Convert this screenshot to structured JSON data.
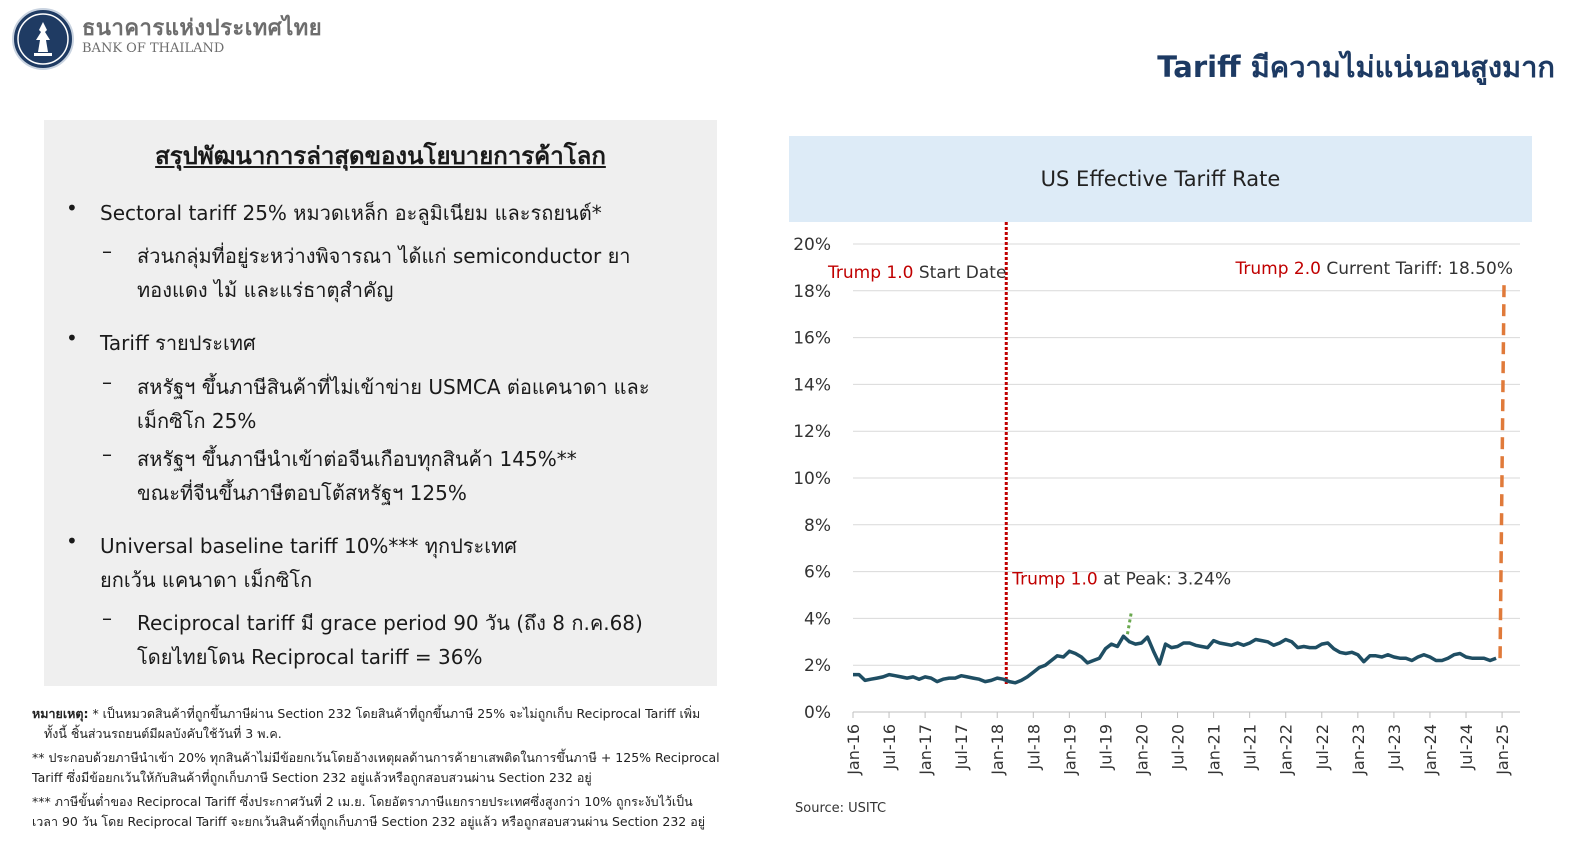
{
  "header": {
    "org_name_thai": "ธนาคารแห่งประเทศไทย",
    "org_name_en": "BANK OF THAILAND",
    "slide_title": "Tariff มีความไม่แน่นอนสูงมาก"
  },
  "panel": {
    "title": "สรุปพัฒนาการล่าสุดของนโยบายการค้าโลก",
    "bullet_symbol": "•",
    "dash_symbol": "–",
    "b1_line1": "Sectoral tariff 25% หมวดเหล็ก อะลูมิเนียม และรถยนต์*",
    "b1_sub1_line1": "ส่วนกลุ่มที่อยู่ระหว่างพิจารณา ได้แก่ semiconductor ยา",
    "b1_sub1_line2": "ทองแดง ไม้ และแร่ธาตุสำคัญ",
    "b2_line1": "Tariff รายประเทศ",
    "b2_sub1_line1": "สหรัฐฯ ขึ้นภาษีสินค้าที่ไม่เข้าข่าย USMCA ต่อแคนาดา และ",
    "b2_sub1_line2": "เม็กซิโก 25%",
    "b2_sub2_line1": "สหรัฐฯ ขึ้นภาษีนำเข้าต่อจีนเกือบทุกสินค้า 145%**",
    "b2_sub2_line2": "ขณะที่จีนขึ้นภาษีตอบโต้สหรัฐฯ 125%",
    "b3_line1": "Universal baseline tariff 10%*** ทุกประเทศ",
    "b3_line2": "ยกเว้น แคนาดา เม็กซิโก",
    "b3_sub1_line1": "Reciprocal tariff มี grace period 90 วัน (ถึง 8 ก.ค.68)",
    "b3_sub1_line2": "โดยไทยโดน Reciprocal tariff = 36%"
  },
  "footnotes": {
    "label": "หมายเหตุ:",
    "note1_line1": "* เป็นหมวดสินค้าที่ถูกขึ้นภาษีผ่าน Section 232 โดยสินค้าที่ถูกขึ้นภาษี 25% จะไม่ถูกเก็บ Reciprocal Tariff เพิ่ม",
    "note1_line2": "ทั้งนี้ ชิ้นส่วนรถยนต์มีผลบังคับใช้วันที่ 3 พ.ค.",
    "note2_line1": "** ประกอบด้วยภาษีนำเข้า 20% ทุกสินค้าไม่มีข้อยกเว้นโดยอ้างเหตุผลด้านการค้ายาเสพติดในการขึ้นภาษี + 125% Reciprocal",
    "note2_line2": "Tariff ซึ่งมีข้อยกเว้นให้กับสินค้าที่ถูกเก็บภาษี Section 232 อยู่แล้วหรือถูกสอบสวนผ่าน Section 232 อยู่",
    "note3_line1": "*** ภาษีขั้นต่ำของ Reciprocal Tariff ซึ่งประกาศวันที่ 2 เม.ย. โดยอัตราภาษีแยกรายประเทศซึ่งสูงกว่า 10% ถูกระงับไว้เป็น",
    "note3_line2": "เวลา 90 วัน โดย Reciprocal Tariff จะยกเว้นสินค้าที่ถูกเก็บภาษี Section 232 อยู่แล้ว หรือถูกสอบสวนผ่าน Section 232 อยู่"
  },
  "chart": {
    "source": "Source: USITC"
  },
  "chart_data": {
    "type": "line",
    "title": "US Effective Tariff Rate",
    "xlabel": "",
    "ylabel": "",
    "ylim": [
      0,
      20
    ],
    "yticks": [
      "0%",
      "2%",
      "4%",
      "6%",
      "8%",
      "10%",
      "12%",
      "14%",
      "16%",
      "18%",
      "20%"
    ],
    "xticks": [
      "Jan-16",
      "Jul-16",
      "Jan-17",
      "Jul-17",
      "Jan-18",
      "Jul-18",
      "Jan-19",
      "Jul-19",
      "Jan-20",
      "Jul-20",
      "Jan-21",
      "Jul-21",
      "Jan-22",
      "Jul-22",
      "Jan-23",
      "Jul-23",
      "Jan-24",
      "Jul-24",
      "Jan-25"
    ],
    "grid": true,
    "series": [
      {
        "x_start": "Jan-16",
        "frequency": "monthly",
        "color": "#1f4e63",
        "values": [
          1.6,
          1.6,
          1.35,
          1.4,
          1.45,
          1.5,
          1.6,
          1.55,
          1.5,
          1.45,
          1.5,
          1.4,
          1.5,
          1.45,
          1.3,
          1.4,
          1.45,
          1.45,
          1.55,
          1.5,
          1.45,
          1.4,
          1.3,
          1.35,
          1.45,
          1.4,
          1.3,
          1.25,
          1.35,
          1.5,
          1.7,
          1.9,
          2.0,
          2.2,
          2.4,
          2.35,
          2.6,
          2.5,
          2.35,
          2.1,
          2.2,
          2.3,
          2.7,
          2.9,
          2.8,
          3.24,
          3.0,
          2.9,
          2.95,
          3.2,
          2.6,
          2.05,
          2.9,
          2.75,
          2.8,
          2.95,
          2.95,
          2.85,
          2.8,
          2.75,
          3.05,
          2.95,
          2.9,
          2.85,
          2.95,
          2.85,
          2.95,
          3.1,
          3.05,
          3.0,
          2.85,
          2.95,
          3.1,
          3.0,
          2.75,
          2.8,
          2.75,
          2.75,
          2.9,
          2.95,
          2.7,
          2.55,
          2.5,
          2.55,
          2.45,
          2.15,
          2.4,
          2.4,
          2.35,
          2.45,
          2.35,
          2.3,
          2.3,
          2.2,
          2.35,
          2.45,
          2.35,
          2.2,
          2.2,
          2.3,
          2.45,
          2.5,
          2.35,
          2.3,
          2.3,
          2.3,
          2.2,
          2.3
        ]
      }
    ],
    "annotations": [
      {
        "prefix": "Trump 1.0",
        "text": " Start Date",
        "x": "Mar-18"
      },
      {
        "prefix": "Trump 1.0",
        "text": " at Peak: 3.24%",
        "x": "Oct-19",
        "value": 3.24
      },
      {
        "prefix": "Trump 2.0",
        "text": " Current Tariff: 18.50%",
        "x": "Apr-25",
        "value": 18.5
      }
    ],
    "colors": {
      "line": "#1f4e63",
      "trump_marker": "#c00000",
      "current_marker": "#e07a3a",
      "peak_marker": "#6aa84f"
    }
  }
}
